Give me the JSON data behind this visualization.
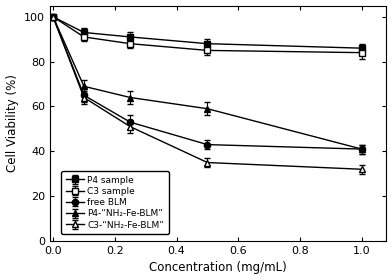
{
  "x": [
    0.0,
    0.1,
    0.25,
    0.5,
    1.0
  ],
  "P4_sample": [
    100,
    93,
    91,
    88,
    86
  ],
  "P4_sample_err": [
    0,
    2,
    2,
    2,
    2
  ],
  "C3_sample": [
    100,
    91,
    88,
    85,
    84
  ],
  "C3_sample_err": [
    0,
    2,
    2,
    2,
    3
  ],
  "free_BLM": [
    100,
    65,
    53,
    43,
    41
  ],
  "free_BLM_err": [
    0,
    3,
    3,
    2,
    2
  ],
  "P4_NH2_Fe_BLM": [
    100,
    69,
    64,
    59,
    41
  ],
  "P4_NH2_Fe_BLM_err": [
    0,
    3,
    3,
    3,
    2
  ],
  "C3_NH2_Fe_BLM": [
    100,
    64,
    51,
    35,
    32
  ],
  "C3_NH2_Fe_BLM_err": [
    0,
    3,
    3,
    2,
    2
  ],
  "xlabel": "Concentration (mg/mL)",
  "ylabel": "Cell Viability (%)",
  "xlim": [
    -0.01,
    1.08
  ],
  "ylim": [
    0,
    105
  ],
  "yticks": [
    0,
    20,
    40,
    60,
    80,
    100
  ],
  "xticks": [
    0.0,
    0.2,
    0.4,
    0.6,
    0.8,
    1.0
  ],
  "legend_labels": [
    "P4 sample",
    "C3 sample",
    "free BLM",
    "P4-“NH₂-Fe-BLM”",
    "C3-“NH₂-Fe-BLM”"
  ],
  "bg_color": "#ffffff"
}
